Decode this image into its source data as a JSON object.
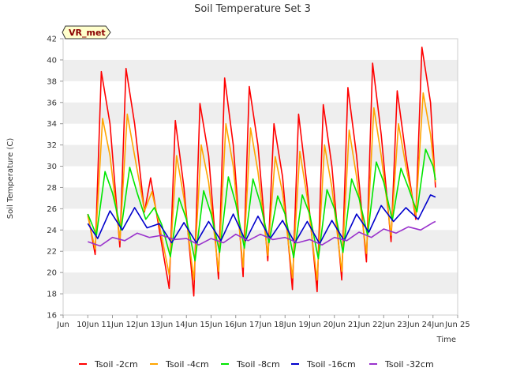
{
  "chart_data": {
    "type": "line",
    "title": "Soil Temperature Set 3",
    "xlabel": "Time",
    "ylabel": "Soil Temperature (C)",
    "badge": "VR_met",
    "xlim": [
      9,
      25
    ],
    "ylim": [
      16,
      42
    ],
    "yticks": [
      16,
      18,
      20,
      22,
      24,
      26,
      28,
      30,
      32,
      34,
      36,
      38,
      40,
      42
    ],
    "xticks": [
      {
        "day": 9,
        "label": "Jun"
      },
      {
        "day": 10,
        "label": "10Jun"
      },
      {
        "day": 11,
        "label": "11Jun"
      },
      {
        "day": 12,
        "label": "12Jun"
      },
      {
        "day": 13,
        "label": "13Jun"
      },
      {
        "day": 14,
        "label": "14Jun"
      },
      {
        "day": 15,
        "label": "15Jun"
      },
      {
        "day": 16,
        "label": "16Jun"
      },
      {
        "day": 17,
        "label": "17Jun"
      },
      {
        "day": 18,
        "label": "18Jun"
      },
      {
        "day": 19,
        "label": "19Jun"
      },
      {
        "day": 20,
        "label": "20Jun"
      },
      {
        "day": 21,
        "label": "21Jun"
      },
      {
        "day": 22,
        "label": "22Jun"
      },
      {
        "day": 23,
        "label": "23Jun"
      },
      {
        "day": 24,
        "label": "24Jun"
      },
      {
        "day": 25,
        "label": "Jun 25"
      }
    ],
    "grid": "horizontal bands",
    "legend_position": "bottom",
    "series": [
      {
        "name": "Tsoil -2cm",
        "color": "#ff0000",
        "x": [
          10.0,
          10.3,
          10.55,
          10.9,
          11.3,
          11.55,
          11.9,
          12.3,
          12.55,
          12.9,
          13.3,
          13.55,
          13.9,
          14.3,
          14.55,
          14.9,
          15.3,
          15.55,
          15.9,
          16.3,
          16.55,
          16.9,
          17.3,
          17.55,
          17.9,
          18.3,
          18.55,
          18.9,
          19.3,
          19.55,
          19.9,
          20.3,
          20.55,
          20.9,
          21.3,
          21.55,
          21.9,
          22.3,
          22.55,
          22.9,
          23.3,
          23.55,
          23.9,
          24.1
        ],
        "y": [
          25.5,
          21.7,
          38.9,
          34.0,
          22.4,
          39.2,
          34.0,
          25.7,
          28.9,
          24.0,
          18.5,
          34.3,
          28.0,
          17.8,
          35.9,
          31.0,
          19.4,
          38.3,
          32.0,
          19.6,
          37.5,
          32.0,
          21.1,
          34.0,
          29.0,
          18.4,
          34.9,
          28.0,
          18.2,
          35.8,
          30.0,
          19.3,
          37.4,
          31.0,
          21.0,
          39.7,
          33.0,
          22.9,
          37.1,
          31.0,
          25.0,
          41.2,
          36.0,
          28.0
        ]
      },
      {
        "name": "Tsoil -4cm",
        "color": "#ffa500",
        "x": [
          10.0,
          10.3,
          10.6,
          10.9,
          11.3,
          11.6,
          11.9,
          12.3,
          12.6,
          12.9,
          13.3,
          13.6,
          13.9,
          14.3,
          14.6,
          14.9,
          15.3,
          15.6,
          15.9,
          16.3,
          16.6,
          16.9,
          17.3,
          17.6,
          17.9,
          18.3,
          18.6,
          18.9,
          19.3,
          19.6,
          19.9,
          20.3,
          20.6,
          20.9,
          21.3,
          21.6,
          21.9,
          22.3,
          22.6,
          22.9,
          23.3,
          23.6,
          23.9,
          24.1
        ],
        "y": [
          25.3,
          22.2,
          34.5,
          31.0,
          23.0,
          34.9,
          31.0,
          25.8,
          27.6,
          24.5,
          19.8,
          31.0,
          27.0,
          19.3,
          32.0,
          28.5,
          20.1,
          34.0,
          30.0,
          20.5,
          33.6,
          29.5,
          21.6,
          30.9,
          27.5,
          19.5,
          31.4,
          27.0,
          19.3,
          32.0,
          28.0,
          20.1,
          33.4,
          29.0,
          21.8,
          35.5,
          31.0,
          23.5,
          34.0,
          30.0,
          25.4,
          36.9,
          33.0,
          28.5
        ]
      },
      {
        "name": "Tsoil -8cm",
        "color": "#00e600",
        "x": [
          10.0,
          10.35,
          10.7,
          11.0,
          11.35,
          11.7,
          12.0,
          12.35,
          12.7,
          13.0,
          13.35,
          13.7,
          14.0,
          14.35,
          14.7,
          15.0,
          15.35,
          15.7,
          16.0,
          16.35,
          16.7,
          17.0,
          17.35,
          17.7,
          18.0,
          18.35,
          18.7,
          19.0,
          19.35,
          19.7,
          20.0,
          20.35,
          20.7,
          21.0,
          21.35,
          21.7,
          22.0,
          22.35,
          22.7,
          23.0,
          23.35,
          23.7,
          24.0,
          24.1
        ],
        "y": [
          25.5,
          23.5,
          29.5,
          27.5,
          24.0,
          29.9,
          27.5,
          25.0,
          26.1,
          24.5,
          21.5,
          27.0,
          25.0,
          21.1,
          27.7,
          25.5,
          21.9,
          29.0,
          26.5,
          22.3,
          28.8,
          26.5,
          22.8,
          27.2,
          25.5,
          21.4,
          27.3,
          25.5,
          21.3,
          27.8,
          26.0,
          21.9,
          28.8,
          27.0,
          23.5,
          30.4,
          28.5,
          24.9,
          29.8,
          28.0,
          25.7,
          31.6,
          30.0,
          28.7
        ]
      },
      {
        "name": "Tsoil -16cm",
        "color": "#0000cc",
        "x": [
          10.0,
          10.4,
          10.9,
          11.4,
          11.9,
          12.4,
          12.9,
          13.4,
          13.9,
          14.4,
          14.9,
          15.4,
          15.9,
          16.4,
          16.9,
          17.4,
          17.9,
          18.4,
          18.9,
          19.4,
          19.9,
          20.4,
          20.9,
          21.4,
          21.9,
          22.4,
          22.9,
          23.4,
          23.9,
          24.1
        ],
        "y": [
          24.6,
          23.2,
          25.8,
          24.0,
          26.1,
          24.2,
          24.6,
          22.8,
          24.7,
          22.8,
          24.8,
          23.0,
          25.5,
          23.0,
          25.3,
          23.2,
          24.9,
          22.8,
          24.8,
          22.7,
          24.9,
          23.0,
          25.5,
          23.8,
          26.3,
          24.8,
          26.1,
          25.0,
          27.3,
          27.1
        ]
      },
      {
        "name": "Tsoil -32cm",
        "color": "#9932cc",
        "x": [
          10.0,
          10.5,
          11.0,
          11.5,
          12.0,
          12.5,
          13.0,
          13.5,
          14.0,
          14.5,
          15.0,
          15.5,
          16.0,
          16.5,
          17.0,
          17.5,
          18.0,
          18.5,
          19.0,
          19.5,
          20.0,
          20.5,
          21.0,
          21.5,
          22.0,
          22.5,
          23.0,
          23.5,
          24.0,
          24.1
        ],
        "y": [
          22.9,
          22.5,
          23.3,
          23.0,
          23.7,
          23.3,
          23.5,
          23.1,
          23.2,
          22.6,
          23.2,
          22.8,
          23.6,
          23.0,
          23.6,
          23.1,
          23.3,
          22.8,
          23.1,
          22.6,
          23.3,
          23.0,
          23.8,
          23.3,
          24.1,
          23.7,
          24.3,
          24.0,
          24.7,
          24.8
        ]
      }
    ]
  }
}
